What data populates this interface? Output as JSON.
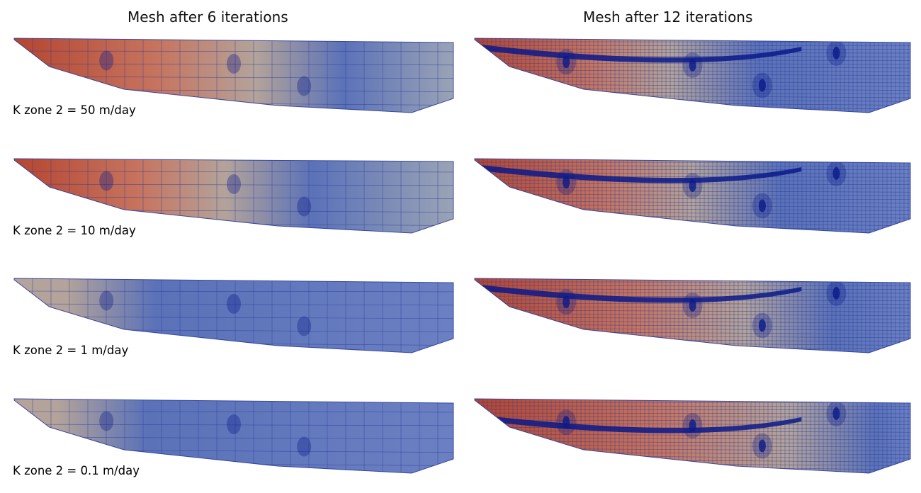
{
  "columns": [
    {
      "title": "Mesh after 6 iterations"
    },
    {
      "title": "Mesh after 12 iterations"
    }
  ],
  "rows": [
    {
      "label": "K zone 2 = 50 m/day"
    },
    {
      "label": "K zone 2 = 10 m/day"
    },
    {
      "label": "K zone 2 = 1 m/day"
    },
    {
      "label": "K zone 2 = 0.1 m/day"
    }
  ],
  "colors": {
    "high": "#b5452f",
    "mid": "#b3a39a",
    "low": "#5b72b8",
    "mesh_line": "#2a3a9a",
    "refinement": "#0a1a8a"
  }
}
